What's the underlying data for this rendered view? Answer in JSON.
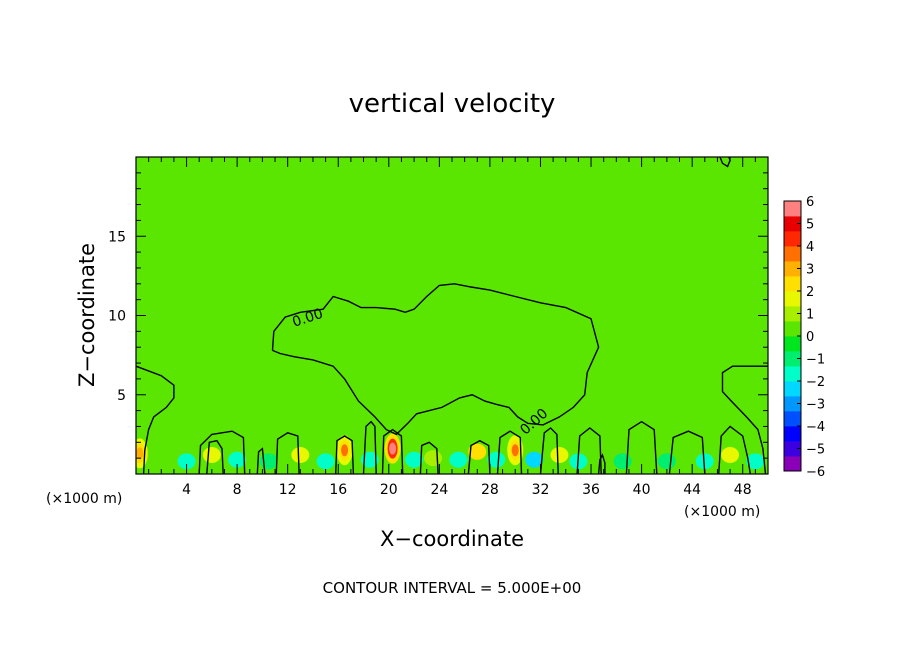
{
  "chart_data": {
    "type": "heatmap",
    "title": "vertical velocity",
    "xlabel": "X−coordinate",
    "ylabel": "Z−coordinate",
    "x_unit": "(×1000 m)",
    "x_unit_right": "(×1000 m)",
    "xlim": [
      0,
      50
    ],
    "ylim": [
      0,
      20
    ],
    "x_ticks": [
      4,
      8,
      12,
      16,
      20,
      24,
      28,
      32,
      36,
      40,
      44,
      48
    ],
    "y_ticks": [
      5,
      10,
      15
    ],
    "contour_interval_text": "CONTOUR INTERVAL = 5.000E+00",
    "contour_labels": [
      "0.00",
      "0.00"
    ],
    "colorbar": {
      "min": -6,
      "max": 6,
      "tick_labels": [
        "6",
        "5",
        "4",
        "3",
        "2",
        "1",
        "0",
        "−1",
        "−2",
        "−3",
        "−4",
        "−5",
        "−6"
      ],
      "colors": [
        "#8a00b8",
        "#3c00e0",
        "#0000ff",
        "#0050ff",
        "#0098ff",
        "#00d8ff",
        "#00ffc8",
        "#00ee70",
        "#00e61e",
        "#5ae600",
        "#a8ee00",
        "#e8f800",
        "#ffe000",
        "#ffb000",
        "#ff7000",
        "#ff2800",
        "#e80000",
        "#ff8080"
      ]
    },
    "background_value": 0.3,
    "cells": [
      {
        "x": 0.3,
        "z": 1.3,
        "value": 3
      },
      {
        "x": 16.5,
        "z": 1.5,
        "value": 3.5
      },
      {
        "x": 20.3,
        "z": 1.6,
        "value": 5.5
      },
      {
        "x": 27.0,
        "z": 1.4,
        "value": 2
      },
      {
        "x": 30.0,
        "z": 1.5,
        "value": 3.5
      },
      {
        "x": 6.0,
        "z": 1.2,
        "value": 1.5
      },
      {
        "x": 13.0,
        "z": 1.2,
        "value": 1.5
      },
      {
        "x": 23.5,
        "z": 1.0,
        "value": 1.2
      },
      {
        "x": 33.5,
        "z": 1.2,
        "value": 1.5
      },
      {
        "x": 47.0,
        "z": 1.2,
        "value": 1.5
      },
      {
        "x": 4.0,
        "z": 0.8,
        "value": -1.8
      },
      {
        "x": 8.0,
        "z": 0.9,
        "value": -1.5
      },
      {
        "x": 10.5,
        "z": 0.8,
        "value": -1.2
      },
      {
        "x": 15.0,
        "z": 0.8,
        "value": -1.8
      },
      {
        "x": 18.5,
        "z": 0.9,
        "value": -1.5
      },
      {
        "x": 22.0,
        "z": 0.9,
        "value": -1.5
      },
      {
        "x": 25.5,
        "z": 0.9,
        "value": -1.5
      },
      {
        "x": 28.5,
        "z": 0.9,
        "value": -1.8
      },
      {
        "x": 31.5,
        "z": 0.9,
        "value": -2.2
      },
      {
        "x": 35.0,
        "z": 0.8,
        "value": -1.5
      },
      {
        "x": 38.5,
        "z": 0.8,
        "value": -1.2
      },
      {
        "x": 42.0,
        "z": 0.8,
        "value": -1.2
      },
      {
        "x": 45.0,
        "z": 0.8,
        "value": -1.5
      },
      {
        "x": 49.0,
        "z": 0.8,
        "value": -2.0
      }
    ],
    "contours": [
      [
        [
          10.8,
          7.8
        ],
        [
          10.9,
          9.0
        ],
        [
          11.8,
          9.9
        ],
        [
          13.0,
          10.2
        ],
        [
          14.8,
          10.4
        ],
        [
          15.6,
          11.2
        ],
        [
          16.8,
          10.9
        ],
        [
          17.8,
          10.5
        ],
        [
          19.0,
          10.5
        ],
        [
          20.5,
          10.4
        ],
        [
          21.3,
          10.2
        ],
        [
          22.0,
          10.4
        ],
        [
          23.0,
          11.2
        ],
        [
          24.0,
          11.9
        ],
        [
          25.2,
          12.0
        ],
        [
          26.5,
          11.8
        ],
        [
          28.0,
          11.6
        ],
        [
          30.0,
          11.2
        ],
        [
          32.0,
          10.8
        ],
        [
          34.0,
          10.5
        ],
        [
          36.0,
          9.8
        ],
        [
          36.6,
          8.0
        ],
        [
          35.7,
          6.4
        ],
        [
          35.5,
          5.0
        ],
        [
          34.6,
          4.2
        ],
        [
          33.5,
          3.6
        ],
        [
          32.2,
          3.1
        ],
        [
          31.0,
          3.2
        ],
        [
          30.2,
          3.6
        ],
        [
          29.5,
          4.2
        ],
        [
          28.5,
          4.4
        ],
        [
          27.6,
          4.6
        ],
        [
          26.6,
          5.0
        ],
        [
          25.6,
          4.8
        ],
        [
          24.2,
          4.2
        ],
        [
          22.2,
          3.8
        ],
        [
          21.5,
          3.2
        ],
        [
          20.6,
          2.5
        ],
        [
          19.8,
          2.8
        ],
        [
          18.9,
          3.6
        ],
        [
          17.6,
          4.6
        ],
        [
          16.5,
          6.0
        ],
        [
          15.6,
          6.8
        ],
        [
          14.0,
          7.2
        ],
        [
          12.5,
          7.4
        ],
        [
          11.4,
          7.6
        ],
        [
          10.8,
          7.8
        ]
      ],
      [
        [
          0.0,
          6.8
        ],
        [
          2.0,
          6.2
        ],
        [
          3.0,
          5.6
        ],
        [
          3.0,
          4.8
        ],
        [
          2.4,
          4.2
        ],
        [
          1.4,
          3.6
        ],
        [
          1.0,
          2.8
        ],
        [
          0.7,
          1.5
        ],
        [
          0.6,
          0.0
        ]
      ],
      [
        [
          5.0,
          0.0
        ],
        [
          5.1,
          1.8
        ],
        [
          6.0,
          2.5
        ],
        [
          7.6,
          2.7
        ],
        [
          8.5,
          2.3
        ],
        [
          8.6,
          0.0
        ]
      ],
      [
        [
          5.6,
          0.0
        ],
        [
          5.8,
          2.0
        ],
        [
          6.4,
          2.1
        ],
        [
          6.8,
          1.6
        ],
        [
          6.9,
          0.0
        ]
      ],
      [
        [
          9.6,
          0.0
        ],
        [
          9.7,
          1.4
        ],
        [
          10.0,
          1.6
        ],
        [
          10.2,
          0.0
        ]
      ],
      [
        [
          11.1,
          0.0
        ],
        [
          11.2,
          2.2
        ],
        [
          12.0,
          2.6
        ],
        [
          12.8,
          2.4
        ],
        [
          12.9,
          0.0
        ]
      ],
      [
        [
          15.8,
          0.0
        ],
        [
          15.9,
          2.1
        ],
        [
          16.5,
          2.4
        ],
        [
          17.1,
          2.1
        ],
        [
          17.2,
          0.0
        ]
      ],
      [
        [
          18.0,
          0.0
        ],
        [
          18.2,
          3.0
        ],
        [
          18.6,
          3.3
        ],
        [
          18.9,
          3.0
        ],
        [
          19.0,
          0.0
        ]
      ],
      [
        [
          19.5,
          0.0
        ],
        [
          19.6,
          2.4
        ],
        [
          20.3,
          2.8
        ],
        [
          21.0,
          2.4
        ],
        [
          21.1,
          0.0
        ]
      ],
      [
        [
          22.5,
          0.0
        ],
        [
          22.6,
          1.8
        ],
        [
          23.2,
          2.0
        ],
        [
          23.8,
          1.6
        ],
        [
          23.9,
          0.0
        ]
      ],
      [
        [
          26.3,
          0.0
        ],
        [
          26.5,
          1.8
        ],
        [
          27.2,
          2.1
        ],
        [
          27.9,
          1.8
        ],
        [
          28.0,
          0.0
        ]
      ],
      [
        [
          28.6,
          0.0
        ],
        [
          28.8,
          2.3
        ],
        [
          29.6,
          2.7
        ],
        [
          30.4,
          2.3
        ],
        [
          30.5,
          0.0
        ]
      ],
      [
        [
          32.0,
          0.0
        ],
        [
          32.3,
          2.6
        ],
        [
          32.8,
          2.9
        ],
        [
          33.3,
          2.5
        ],
        [
          33.4,
          0.0
        ]
      ],
      [
        [
          34.9,
          0.0
        ],
        [
          35.1,
          2.4
        ],
        [
          35.9,
          2.9
        ],
        [
          36.7,
          2.4
        ],
        [
          36.8,
          0.0
        ]
      ],
      [
        [
          36.6,
          0.0
        ],
        [
          36.7,
          0.9
        ],
        [
          36.9,
          1.2
        ],
        [
          37.1,
          0.7
        ],
        [
          37.1,
          0.0
        ]
      ],
      [
        [
          38.8,
          0.0
        ],
        [
          39.0,
          2.8
        ],
        [
          40.0,
          3.3
        ],
        [
          41.0,
          2.8
        ],
        [
          41.2,
          0.0
        ]
      ],
      [
        [
          42.2,
          0.0
        ],
        [
          42.5,
          2.3
        ],
        [
          43.7,
          2.7
        ],
        [
          44.8,
          2.3
        ],
        [
          45.0,
          0.0
        ]
      ],
      [
        [
          46.1,
          0.0
        ],
        [
          46.3,
          2.4
        ],
        [
          47.0,
          3.0
        ],
        [
          48.0,
          2.4
        ],
        [
          48.4,
          1.0
        ],
        [
          48.6,
          0.0
        ]
      ],
      [
        [
          50.0,
          6.8
        ],
        [
          47.2,
          6.8
        ],
        [
          46.4,
          6.4
        ],
        [
          46.4,
          5.2
        ],
        [
          47.1,
          4.6
        ],
        [
          48.3,
          3.6
        ],
        [
          49.2,
          2.8
        ],
        [
          49.6,
          1.6
        ],
        [
          49.8,
          0.0
        ]
      ],
      [
        [
          46.2,
          20.0
        ],
        [
          46.4,
          19.6
        ],
        [
          46.8,
          19.4
        ],
        [
          47.0,
          19.8
        ],
        [
          46.9,
          20.0
        ]
      ]
    ]
  }
}
